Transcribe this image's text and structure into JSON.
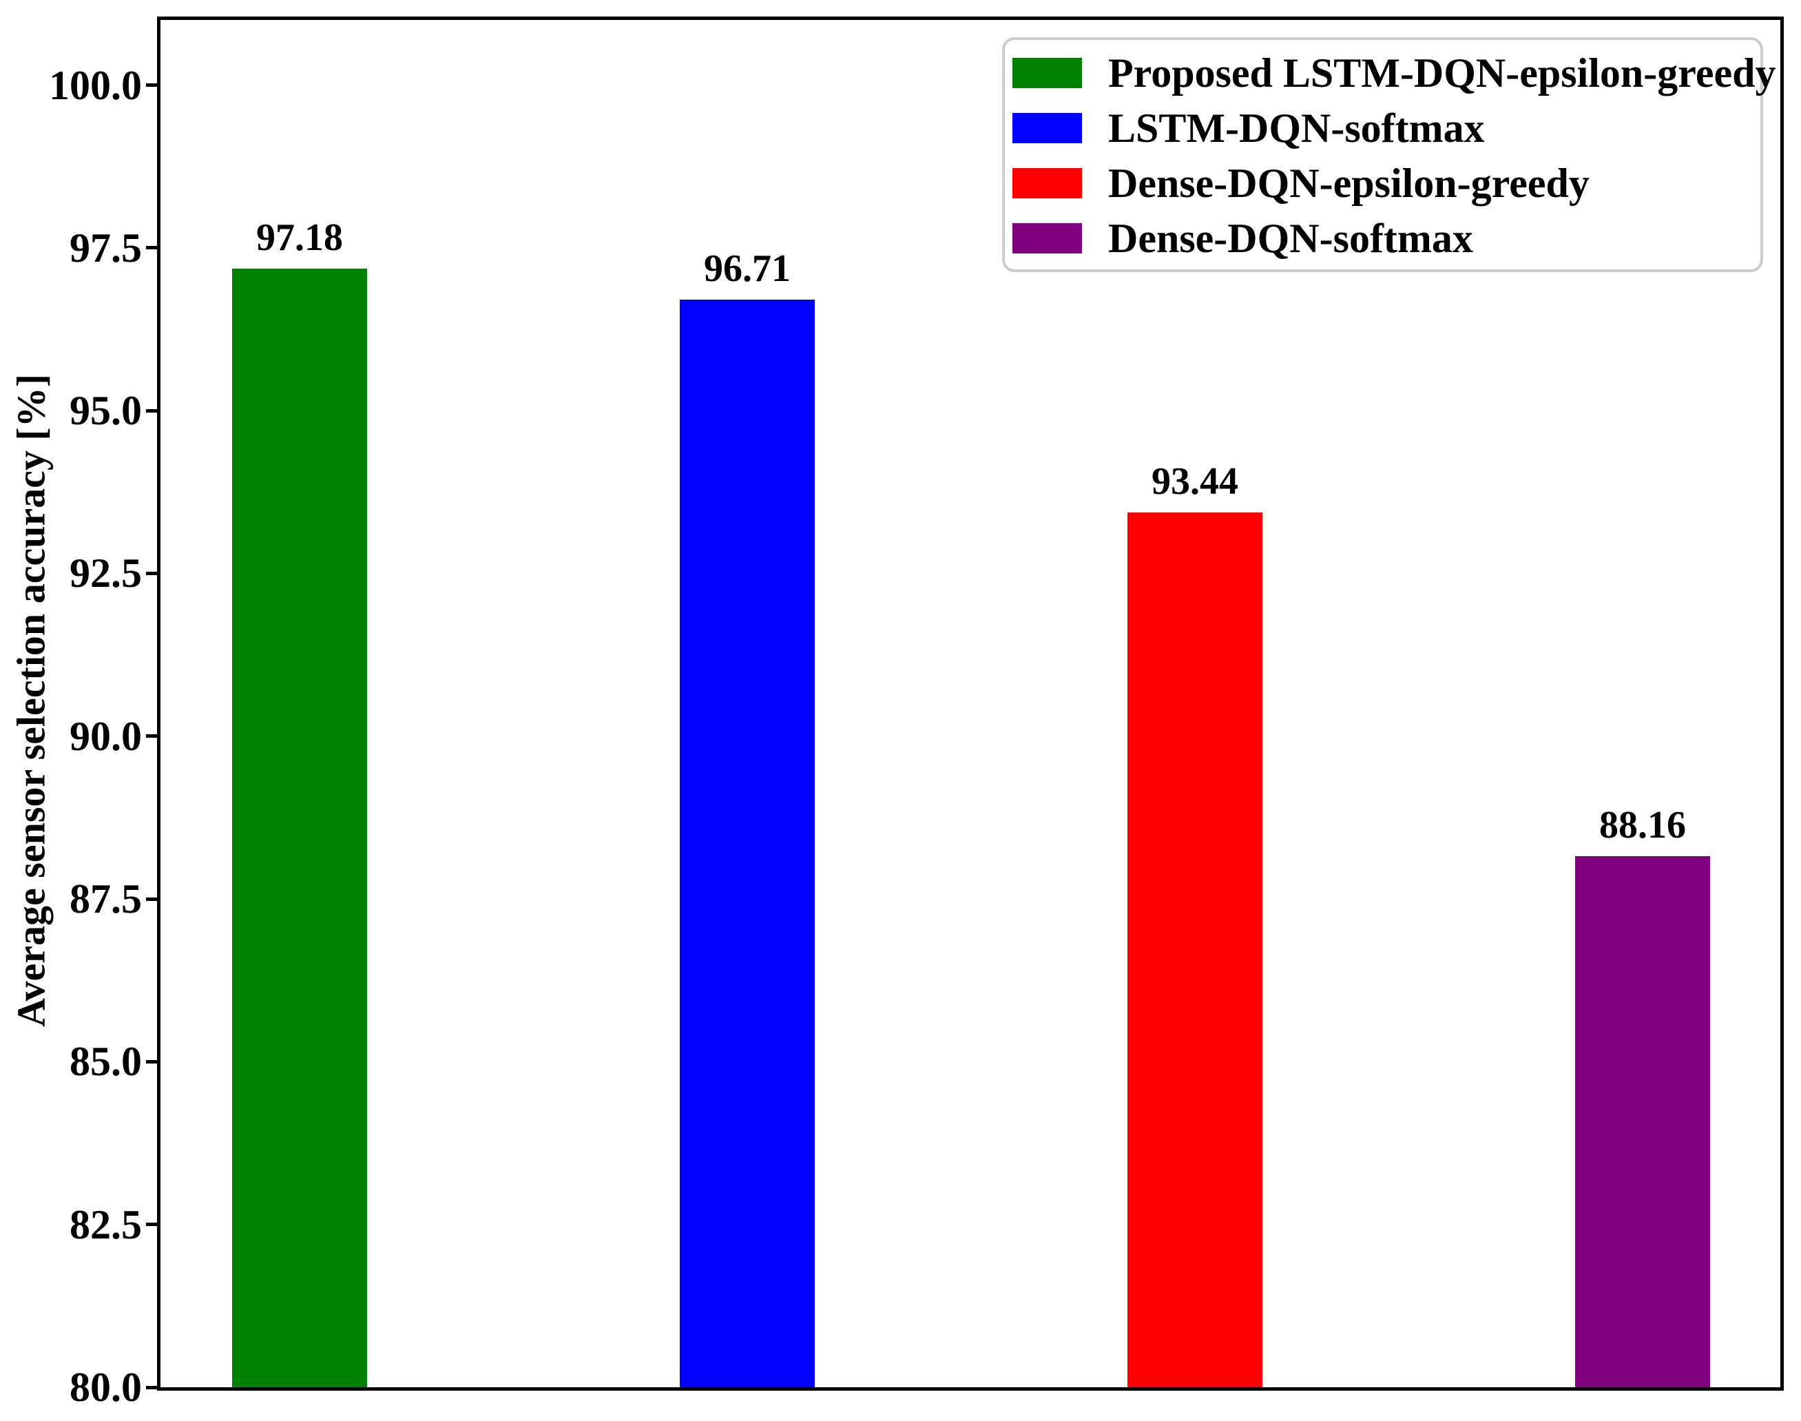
{
  "chart_data": {
    "type": "bar",
    "title": "",
    "xlabel": "",
    "ylabel": "Average sensor selection accuracy [%]",
    "ylim": [
      80,
      101
    ],
    "grid": false,
    "legend_position": "upper right",
    "x_tick_labels": [],
    "yticks": [
      {
        "value": 100.0,
        "label": "100.0"
      },
      {
        "value": 97.5,
        "label": "97.5"
      },
      {
        "value": 95.0,
        "label": "95.0"
      },
      {
        "value": 92.5,
        "label": "92.5"
      },
      {
        "value": 90.0,
        "label": "90.0"
      },
      {
        "value": 87.5,
        "label": "87.5"
      },
      {
        "value": 85.0,
        "label": "85.0"
      },
      {
        "value": 82.5,
        "label": "82.5"
      },
      {
        "value": 80.0,
        "label": "80.0"
      }
    ],
    "series": [
      {
        "name": "Proposed LSTM-DQN-epsilon-greedy",
        "value": 97.18,
        "value_label": "97.18",
        "color": "#008000"
      },
      {
        "name": "LSTM-DQN-softmax",
        "value": 96.71,
        "value_label": "96.71",
        "color": "#0000ff"
      },
      {
        "name": "Dense-DQN-epsilon-greedy",
        "value": 93.44,
        "value_label": "93.44",
        "color": "#ff0000"
      },
      {
        "name": "Dense-DQN-softmax",
        "value": 88.16,
        "value_label": "88.16",
        "color": "#800080"
      }
    ]
  }
}
